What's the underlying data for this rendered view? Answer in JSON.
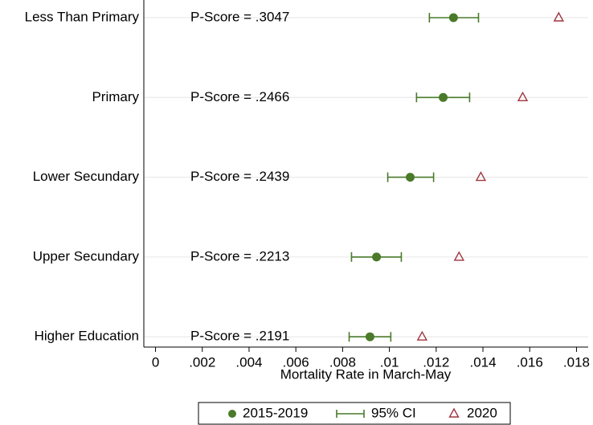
{
  "chart_data": {
    "type": "dot",
    "categories": [
      "Less Than Primary",
      "Primary",
      "Lower Secundary",
      "Upper Secundary",
      "Higher Education"
    ],
    "annotations": [
      "P-Score = .3047",
      "P-Score = .2466",
      "P-Score = .2439",
      "P-Score = .2213",
      "P-Score = .2191"
    ],
    "series": [
      {
        "name": "2015-2019",
        "color": "#4a7a2a",
        "values": [
          0.01274,
          0.0123,
          0.01089,
          0.00945,
          0.00917
        ]
      },
      {
        "name": "95% CI",
        "color": "#4a7a2a",
        "lower": [
          0.01171,
          0.01116,
          0.00993,
          0.00838,
          0.00828
        ],
        "upper": [
          0.01381,
          0.01343,
          0.01189,
          0.01051,
          0.01006
        ]
      },
      {
        "name": "2020",
        "color": "#a0353f",
        "values": [
          0.01724,
          0.0157,
          0.01391,
          0.01298,
          0.0114
        ]
      }
    ],
    "xlabel": "Mortality Rate in March-May",
    "xlim": [
      -0.0005,
      0.0185
    ],
    "xticks": [
      0,
      {
        "value": 0.002,
        "label": ".002"
      },
      {
        "value": 0.004,
        "label": ".004"
      },
      {
        "value": 0.006,
        "label": ".006"
      },
      {
        "value": 0.008,
        "label": ".008"
      },
      {
        "value": 0.01,
        "label": ".01"
      },
      {
        "value": 0.012,
        "label": ".012"
      },
      {
        "value": 0.014,
        "label": ".014"
      },
      {
        "value": 0.016,
        "label": ".016"
      },
      {
        "value": 0.018,
        "label": ".018"
      }
    ],
    "grid": true,
    "legend": "bottom"
  }
}
